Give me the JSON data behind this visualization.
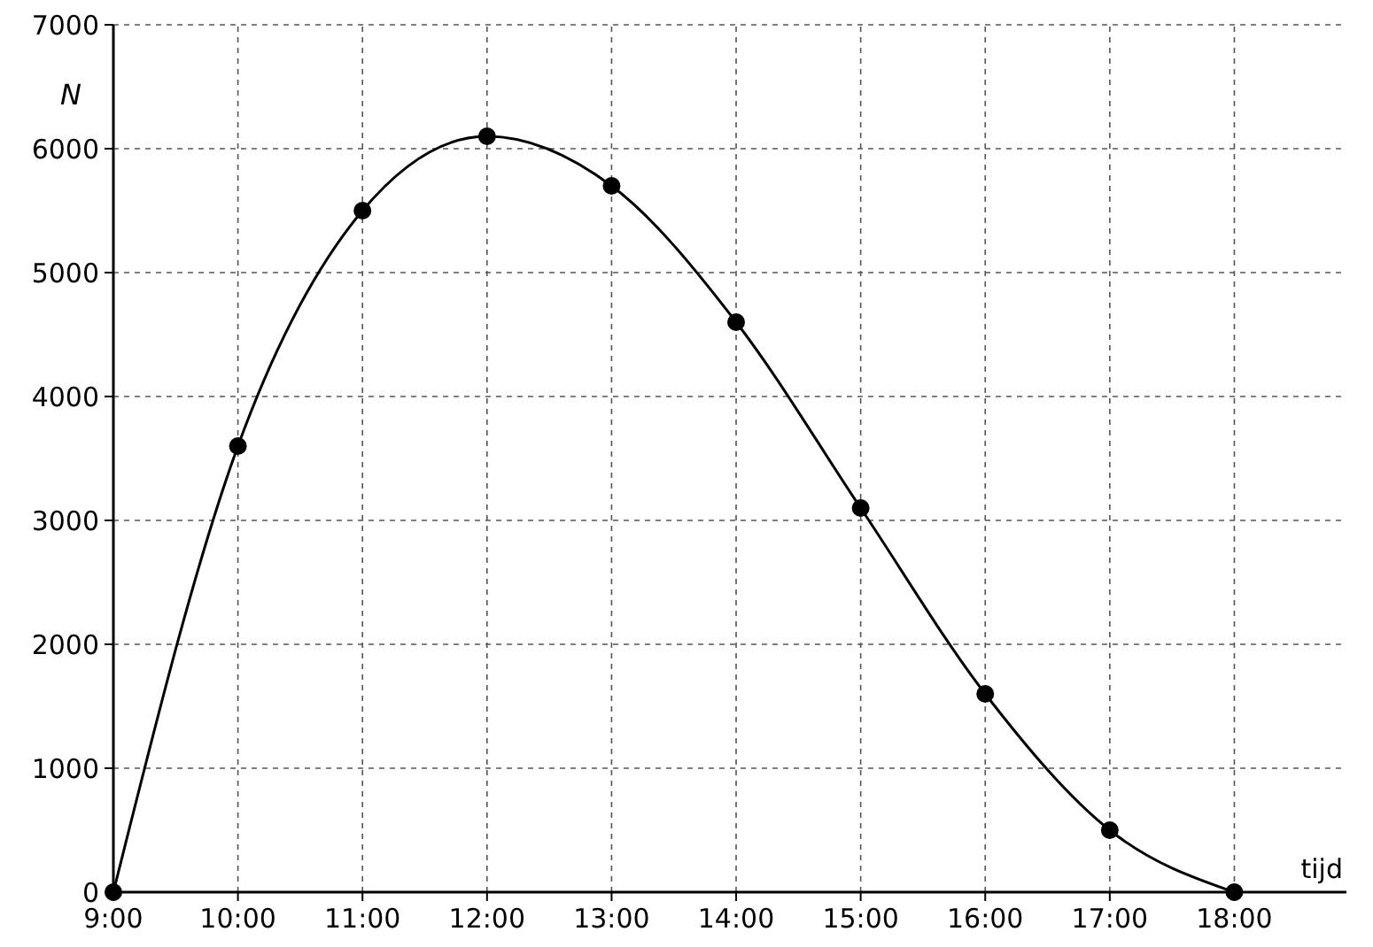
{
  "chart_data": {
    "type": "line",
    "xlabel": "tijd",
    "ylabel": "N",
    "x": [
      9,
      10,
      11,
      12,
      13,
      14,
      15,
      16,
      17,
      18
    ],
    "series": [
      {
        "color": "#000000",
        "values": [
          0,
          3600,
          5500,
          6100,
          5700,
          4600,
          3100,
          1600,
          500,
          0
        ]
      }
    ],
    "xlim": [
      9,
      18.9
    ],
    "ylim": [
      0,
      7000
    ],
    "xticks": [
      {
        "value": 9,
        "label": "9:00"
      },
      {
        "value": 10,
        "label": "10:00"
      },
      {
        "value": 11,
        "label": "11:00"
      },
      {
        "value": 12,
        "label": "12:00"
      },
      {
        "value": 13,
        "label": "13:00"
      },
      {
        "value": 14,
        "label": "14:00"
      },
      {
        "value": 15,
        "label": "15:00"
      },
      {
        "value": 16,
        "label": "16:00"
      },
      {
        "value": 17,
        "label": "17:00"
      },
      {
        "value": 18,
        "label": "18:00"
      }
    ],
    "yticks": [
      0,
      1000,
      2000,
      3000,
      4000,
      5000,
      6000,
      7000
    ],
    "grid": true,
    "marker": "circle",
    "line_style": "solid"
  }
}
